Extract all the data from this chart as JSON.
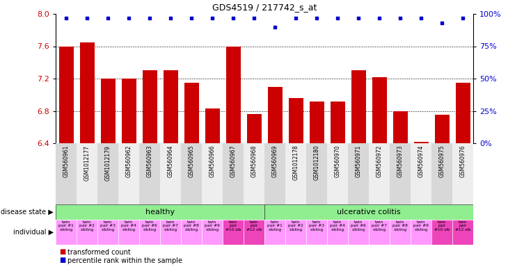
{
  "title": "GDS4519 / 217742_s_at",
  "samples": [
    "GSM560961",
    "GSM1012177",
    "GSM1012179",
    "GSM560962",
    "GSM560963",
    "GSM560964",
    "GSM560965",
    "GSM560966",
    "GSM560967",
    "GSM560968",
    "GSM560969",
    "GSM1012178",
    "GSM1012180",
    "GSM560970",
    "GSM560971",
    "GSM560972",
    "GSM560973",
    "GSM560974",
    "GSM560975",
    "GSM560976"
  ],
  "bar_values": [
    7.6,
    7.65,
    7.2,
    7.2,
    7.3,
    7.3,
    7.15,
    6.83,
    7.6,
    6.76,
    7.1,
    6.96,
    6.92,
    6.92,
    7.3,
    7.22,
    6.8,
    6.42,
    6.75,
    7.15
  ],
  "dot_values": [
    97,
    97,
    97,
    97,
    97,
    97,
    97,
    97,
    97,
    97,
    90,
    97,
    97,
    97,
    97,
    97,
    97,
    97,
    93,
    97
  ],
  "ylim_left": [
    6.4,
    8.0
  ],
  "ylim_right": [
    0,
    100
  ],
  "yticks_left": [
    6.4,
    6.8,
    7.2,
    7.6,
    8.0
  ],
  "yticks_right": [
    0,
    25,
    50,
    75,
    100
  ],
  "bar_color": "#cc0000",
  "dot_color": "#0000cc",
  "bar_baseline": 6.4,
  "individual_labels": [
    "twin\npair #1\nsibling",
    "twin\npair #2\nsibling",
    "twin\npair #3\nsibling",
    "twin\npair #4\nsibling",
    "twin\npair #6\nsibling",
    "twin\npair #7\nsibling",
    "twin\npair #8\nsibling",
    "twin\npair #9\nsibling",
    "twin\npair\n#10 sib",
    "twin\npair\n#12 sib",
    "twin\npair #1\nsibling",
    "twin\npair #2\nsibling",
    "twin\npair #3\nsibling",
    "twin\npair #4\nsibling",
    "twin\npair #6\nsibling",
    "twin\npair #7\nsibling",
    "twin\npair #8\nsibling",
    "twin\npair #9\nsibling",
    "twin\npair\n#10 sib",
    "twin\npair\n#12 sib"
  ],
  "bg_color": "#ffffff",
  "tick_label_color_left": "#cc0000",
  "tick_label_color_right": "#0000cc",
  "healthy_color": "#90ee90",
  "uc_color": "#90ee90",
  "ind_color_normal": "#ff99ff",
  "ind_color_special": "#ee44bb",
  "label_bg_even": "#d8d8d8",
  "label_bg_odd": "#eeeeee"
}
